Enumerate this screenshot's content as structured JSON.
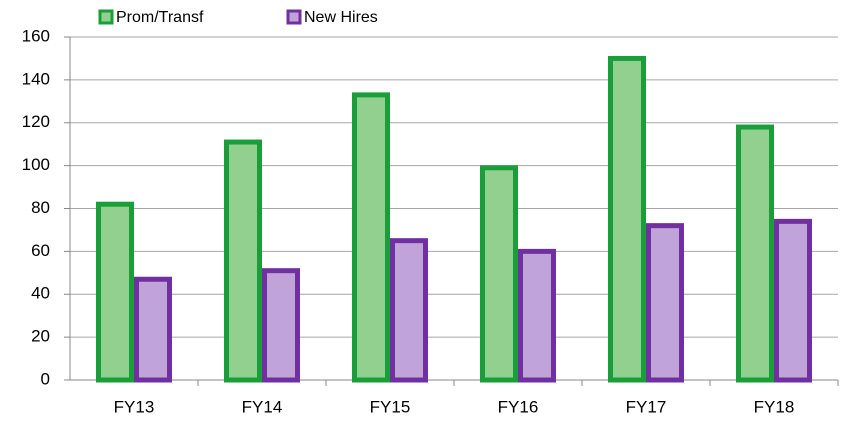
{
  "chart_data": {
    "type": "bar",
    "categories": [
      "FY13",
      "FY14",
      "FY15",
      "FY16",
      "FY17",
      "FY18"
    ],
    "series": [
      {
        "name": "Prom/Transf",
        "color": "#92d08f",
        "edgecolor": "#1a9e3a",
        "values": [
          82,
          111,
          133,
          99,
          150,
          118
        ]
      },
      {
        "name": "New Hires",
        "color": "#c0a3d8",
        "edgecolor": "#7030a0",
        "values": [
          47,
          51,
          65,
          60,
          72,
          74
        ]
      }
    ],
    "ylim": [
      0,
      160
    ],
    "yticks": [
      0,
      20,
      40,
      60,
      80,
      100,
      120,
      140,
      160
    ],
    "grid": true,
    "legend": "top"
  }
}
